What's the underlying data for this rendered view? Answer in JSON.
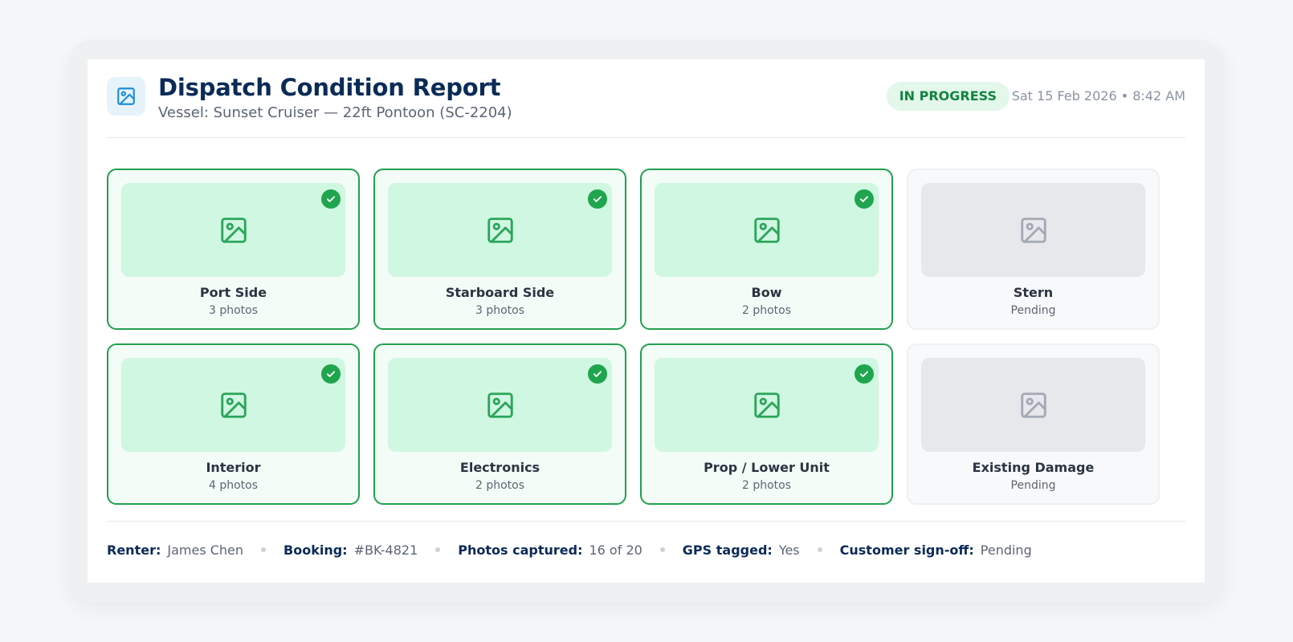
{
  "header": {
    "icon": "image-icon",
    "title": "Dispatch Condition Report",
    "subtitle": "Vessel: Sunset Cruiser — 22ft Pontoon (SC-2204)",
    "status": "IN PROGRESS",
    "timestamp": "Sat 15 Feb 2026 • 8:42 AM"
  },
  "sections": [
    {
      "name": "Port Side",
      "detail": "3 photos",
      "state": "complete"
    },
    {
      "name": "Starboard Side",
      "detail": "3 photos",
      "state": "complete"
    },
    {
      "name": "Bow",
      "detail": "2 photos",
      "state": "complete"
    },
    {
      "name": "Stern",
      "detail": "Pending",
      "state": "pending"
    },
    {
      "name": "Interior",
      "detail": "4 photos",
      "state": "complete"
    },
    {
      "name": "Electronics",
      "detail": "2 photos",
      "state": "complete"
    },
    {
      "name": "Prop / Lower Unit",
      "detail": "2 photos",
      "state": "complete"
    },
    {
      "name": "Existing Damage",
      "detail": "Pending",
      "state": "pending"
    }
  ],
  "footer": {
    "renter_label": "Renter:",
    "renter": "James Chen",
    "booking_label": "Booking:",
    "booking": "#BK-4821",
    "photos_label": "Photos captured:",
    "photos": "16 of 20",
    "gps_label": "GPS tagged:",
    "gps": "Yes",
    "signoff_label": "Customer sign-off:",
    "signoff": "Pending"
  },
  "colors": {
    "accent_green": "#22a050",
    "title_navy": "#0b2b57",
    "pending_gray": "#e6e8ec"
  }
}
